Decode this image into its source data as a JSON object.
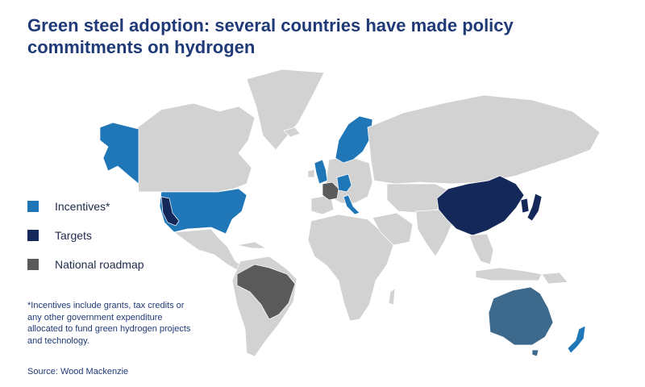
{
  "title": "Green steel adoption: several countries have made policy\ncommitments on hydrogen",
  "legend": [
    {
      "label": "Incentives*",
      "color": "#1f77b8"
    },
    {
      "label": "Targets",
      "color": "#14285a"
    },
    {
      "label": "National roadmap",
      "color": "#5a5a5a"
    }
  ],
  "footnote": "*Incentives include grants, tax credits or any other government expenditure allocated to fund green hydrogen projects and technology.",
  "source": "Source: Wood Mackenzie",
  "colors": {
    "land": "#d2d2d2",
    "incentives": "#1f77b8",
    "targets": "#14285a",
    "roadmap": "#5a5a5a",
    "incentives_targets_hatch": "#3d6a8c"
  }
}
